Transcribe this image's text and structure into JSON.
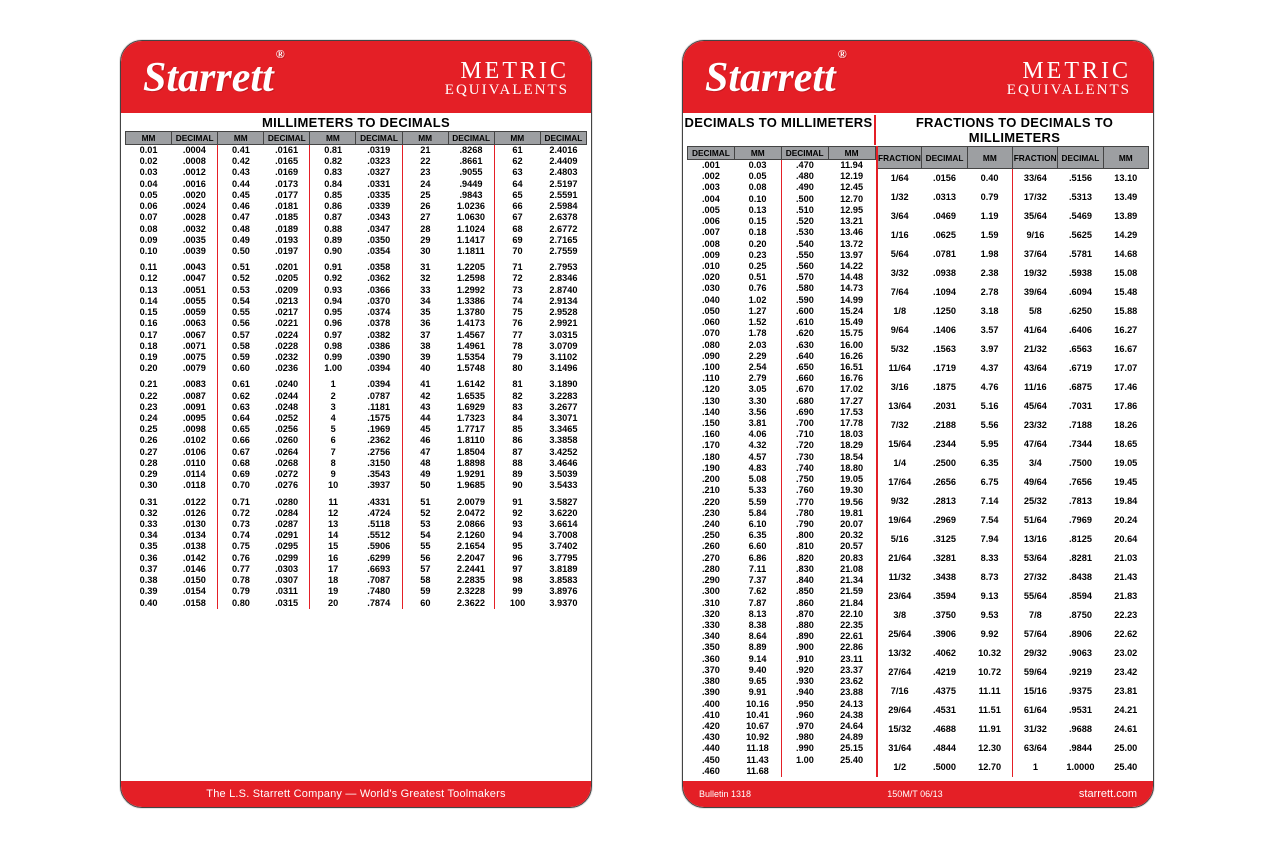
{
  "brand_html": "Starrett<sup>®</sup>",
  "metric_line1": "METRIC",
  "metric_line2": "EQUIVALENTS",
  "colors": {
    "red": "#e41f26",
    "header_gray": "#9d9fa2",
    "text": "#000000",
    "white": "#ffffff"
  },
  "card1": {
    "title": "MILLIMETERS TO DECIMALS",
    "footer": "The L.S. Starrett Company — World's Greatest Toolmakers",
    "headers": [
      "MM",
      "DECIMAL",
      "MM",
      "DECIMAL",
      "MM",
      "DECIMAL",
      "MM",
      "DECIMAL",
      "MM",
      "DECIMAL"
    ],
    "groups": [
      [
        [
          "0.01",
          ".0004",
          "0.41",
          ".0161",
          "0.81",
          ".0319",
          "21",
          ".8268",
          "61",
          "2.4016"
        ],
        [
          "0.02",
          ".0008",
          "0.42",
          ".0165",
          "0.82",
          ".0323",
          "22",
          ".8661",
          "62",
          "2.4409"
        ],
        [
          "0.03",
          ".0012",
          "0.43",
          ".0169",
          "0.83",
          ".0327",
          "23",
          ".9055",
          "63",
          "2.4803"
        ],
        [
          "0.04",
          ".0016",
          "0.44",
          ".0173",
          "0.84",
          ".0331",
          "24",
          ".9449",
          "64",
          "2.5197"
        ],
        [
          "0.05",
          ".0020",
          "0.45",
          ".0177",
          "0.85",
          ".0335",
          "25",
          ".9843",
          "65",
          "2.5591"
        ],
        [
          "0.06",
          ".0024",
          "0.46",
          ".0181",
          "0.86",
          ".0339",
          "26",
          "1.0236",
          "66",
          "2.5984"
        ],
        [
          "0.07",
          ".0028",
          "0.47",
          ".0185",
          "0.87",
          ".0343",
          "27",
          "1.0630",
          "67",
          "2.6378"
        ],
        [
          "0.08",
          ".0032",
          "0.48",
          ".0189",
          "0.88",
          ".0347",
          "28",
          "1.1024",
          "68",
          "2.6772"
        ],
        [
          "0.09",
          ".0035",
          "0.49",
          ".0193",
          "0.89",
          ".0350",
          "29",
          "1.1417",
          "69",
          "2.7165"
        ],
        [
          "0.10",
          ".0039",
          "0.50",
          ".0197",
          "0.90",
          ".0354",
          "30",
          "1.1811",
          "70",
          "2.7559"
        ]
      ],
      [
        [
          "0.11",
          ".0043",
          "0.51",
          ".0201",
          "0.91",
          ".0358",
          "31",
          "1.2205",
          "71",
          "2.7953"
        ],
        [
          "0.12",
          ".0047",
          "0.52",
          ".0205",
          "0.92",
          ".0362",
          "32",
          "1.2598",
          "72",
          "2.8346"
        ],
        [
          "0.13",
          ".0051",
          "0.53",
          ".0209",
          "0.93",
          ".0366",
          "33",
          "1.2992",
          "73",
          "2.8740"
        ],
        [
          "0.14",
          ".0055",
          "0.54",
          ".0213",
          "0.94",
          ".0370",
          "34",
          "1.3386",
          "74",
          "2.9134"
        ],
        [
          "0.15",
          ".0059",
          "0.55",
          ".0217",
          "0.95",
          ".0374",
          "35",
          "1.3780",
          "75",
          "2.9528"
        ],
        [
          "0.16",
          ".0063",
          "0.56",
          ".0221",
          "0.96",
          ".0378",
          "36",
          "1.4173",
          "76",
          "2.9921"
        ],
        [
          "0.17",
          ".0067",
          "0.57",
          ".0224",
          "0.97",
          ".0382",
          "37",
          "1.4567",
          "77",
          "3.0315"
        ],
        [
          "0.18",
          ".0071",
          "0.58",
          ".0228",
          "0.98",
          ".0386",
          "38",
          "1.4961",
          "78",
          "3.0709"
        ],
        [
          "0.19",
          ".0075",
          "0.59",
          ".0232",
          "0.99",
          ".0390",
          "39",
          "1.5354",
          "79",
          "3.1102"
        ],
        [
          "0.20",
          ".0079",
          "0.60",
          ".0236",
          "1.00",
          ".0394",
          "40",
          "1.5748",
          "80",
          "3.1496"
        ]
      ],
      [
        [
          "0.21",
          ".0083",
          "0.61",
          ".0240",
          "1",
          ".0394",
          "41",
          "1.6142",
          "81",
          "3.1890"
        ],
        [
          "0.22",
          ".0087",
          "0.62",
          ".0244",
          "2",
          ".0787",
          "42",
          "1.6535",
          "82",
          "3.2283"
        ],
        [
          "0.23",
          ".0091",
          "0.63",
          ".0248",
          "3",
          ".1181",
          "43",
          "1.6929",
          "83",
          "3.2677"
        ],
        [
          "0.24",
          ".0095",
          "0.64",
          ".0252",
          "4",
          ".1575",
          "44",
          "1.7323",
          "84",
          "3.3071"
        ],
        [
          "0.25",
          ".0098",
          "0.65",
          ".0256",
          "5",
          ".1969",
          "45",
          "1.7717",
          "85",
          "3.3465"
        ],
        [
          "0.26",
          ".0102",
          "0.66",
          ".0260",
          "6",
          ".2362",
          "46",
          "1.8110",
          "86",
          "3.3858"
        ],
        [
          "0.27",
          ".0106",
          "0.67",
          ".0264",
          "7",
          ".2756",
          "47",
          "1.8504",
          "87",
          "3.4252"
        ],
        [
          "0.28",
          ".0110",
          "0.68",
          ".0268",
          "8",
          ".3150",
          "48",
          "1.8898",
          "88",
          "3.4646"
        ],
        [
          "0.29",
          ".0114",
          "0.69",
          ".0272",
          "9",
          ".3543",
          "49",
          "1.9291",
          "89",
          "3.5039"
        ],
        [
          "0.30",
          ".0118",
          "0.70",
          ".0276",
          "10",
          ".3937",
          "50",
          "1.9685",
          "90",
          "3.5433"
        ]
      ],
      [
        [
          "0.31",
          ".0122",
          "0.71",
          ".0280",
          "11",
          ".4331",
          "51",
          "2.0079",
          "91",
          "3.5827"
        ],
        [
          "0.32",
          ".0126",
          "0.72",
          ".0284",
          "12",
          ".4724",
          "52",
          "2.0472",
          "92",
          "3.6220"
        ],
        [
          "0.33",
          ".0130",
          "0.73",
          ".0287",
          "13",
          ".5118",
          "53",
          "2.0866",
          "93",
          "3.6614"
        ],
        [
          "0.34",
          ".0134",
          "0.74",
          ".0291",
          "14",
          ".5512",
          "54",
          "2.1260",
          "94",
          "3.7008"
        ],
        [
          "0.35",
          ".0138",
          "0.75",
          ".0295",
          "15",
          ".5906",
          "55",
          "2.1654",
          "95",
          "3.7402"
        ],
        [
          "0.36",
          ".0142",
          "0.76",
          ".0299",
          "16",
          ".6299",
          "56",
          "2.2047",
          "96",
          "3.7795"
        ],
        [
          "0.37",
          ".0146",
          "0.77",
          ".0303",
          "17",
          ".6693",
          "57",
          "2.2441",
          "97",
          "3.8189"
        ],
        [
          "0.38",
          ".0150",
          "0.78",
          ".0307",
          "18",
          ".7087",
          "58",
          "2.2835",
          "98",
          "3.8583"
        ],
        [
          "0.39",
          ".0154",
          "0.79",
          ".0311",
          "19",
          ".7480",
          "59",
          "2.3228",
          "99",
          "3.8976"
        ],
        [
          "0.40",
          ".0158",
          "0.80",
          ".0315",
          "20",
          ".7874",
          "60",
          "2.3622",
          "100",
          "3.9370"
        ]
      ]
    ]
  },
  "card2": {
    "title_left": "DECIMALS TO MILLIMETERS",
    "title_right": "FRACTIONS TO DECIMALS TO MILLIMETERS",
    "footer_left1": "Bulletin 1318",
    "footer_left2": "150M/T  06/13",
    "footer_right": "starrett.com",
    "headers": [
      "DECIMAL",
      "MM",
      "DECIMAL",
      "MM",
      "FRACTION",
      "DECIMAL",
      "MM",
      "FRACTION",
      "DECIMAL",
      "MM"
    ],
    "left_rows": [
      [
        ".001",
        "0.03",
        ".470",
        "11.94"
      ],
      [
        ".002",
        "0.05",
        ".480",
        "12.19"
      ],
      [
        ".003",
        "0.08",
        ".490",
        "12.45"
      ],
      [
        ".004",
        "0.10",
        ".500",
        "12.70"
      ],
      [
        ".005",
        "0.13",
        ".510",
        "12.95"
      ],
      [
        ".006",
        "0.15",
        ".520",
        "13.21"
      ],
      [
        ".007",
        "0.18",
        ".530",
        "13.46"
      ],
      [
        ".008",
        "0.20",
        ".540",
        "13.72"
      ],
      [
        ".009",
        "0.23",
        ".550",
        "13.97"
      ],
      [
        ".010",
        "0.25",
        ".560",
        "14.22"
      ],
      [
        ".020",
        "0.51",
        ".570",
        "14.48"
      ],
      [
        ".030",
        "0.76",
        ".580",
        "14.73"
      ],
      [
        ".040",
        "1.02",
        ".590",
        "14.99"
      ],
      [
        ".050",
        "1.27",
        ".600",
        "15.24"
      ],
      [
        ".060",
        "1.52",
        ".610",
        "15.49"
      ],
      [
        ".070",
        "1.78",
        ".620",
        "15.75"
      ],
      [
        ".080",
        "2.03",
        ".630",
        "16.00"
      ],
      [
        ".090",
        "2.29",
        ".640",
        "16.26"
      ],
      [
        ".100",
        "2.54",
        ".650",
        "16.51"
      ],
      [
        ".110",
        "2.79",
        ".660",
        "16.76"
      ],
      [
        ".120",
        "3.05",
        ".670",
        "17.02"
      ],
      [
        ".130",
        "3.30",
        ".680",
        "17.27"
      ],
      [
        ".140",
        "3.56",
        ".690",
        "17.53"
      ],
      [
        ".150",
        "3.81",
        ".700",
        "17.78"
      ],
      [
        ".160",
        "4.06",
        ".710",
        "18.03"
      ],
      [
        ".170",
        "4.32",
        ".720",
        "18.29"
      ],
      [
        ".180",
        "4.57",
        ".730",
        "18.54"
      ],
      [
        ".190",
        "4.83",
        ".740",
        "18.80"
      ],
      [
        ".200",
        "5.08",
        ".750",
        "19.05"
      ],
      [
        ".210",
        "5.33",
        ".760",
        "19.30"
      ],
      [
        ".220",
        "5.59",
        ".770",
        "19.56"
      ],
      [
        ".230",
        "5.84",
        ".780",
        "19.81"
      ],
      [
        ".240",
        "6.10",
        ".790",
        "20.07"
      ],
      [
        ".250",
        "6.35",
        ".800",
        "20.32"
      ],
      [
        ".260",
        "6.60",
        ".810",
        "20.57"
      ],
      [
        ".270",
        "6.86",
        ".820",
        "20.83"
      ],
      [
        ".280",
        "7.11",
        ".830",
        "21.08"
      ],
      [
        ".290",
        "7.37",
        ".840",
        "21.34"
      ],
      [
        ".300",
        "7.62",
        ".850",
        "21.59"
      ],
      [
        ".310",
        "7.87",
        ".860",
        "21.84"
      ],
      [
        ".320",
        "8.13",
        ".870",
        "22.10"
      ],
      [
        ".330",
        "8.38",
        ".880",
        "22.35"
      ],
      [
        ".340",
        "8.64",
        ".890",
        "22.61"
      ],
      [
        ".350",
        "8.89",
        ".900",
        "22.86"
      ],
      [
        ".360",
        "9.14",
        ".910",
        "23.11"
      ],
      [
        ".370",
        "9.40",
        ".920",
        "23.37"
      ],
      [
        ".380",
        "9.65",
        ".930",
        "23.62"
      ],
      [
        ".390",
        "9.91",
        ".940",
        "23.88"
      ],
      [
        ".400",
        "10.16",
        ".950",
        "24.13"
      ],
      [
        ".410",
        "10.41",
        ".960",
        "24.38"
      ],
      [
        ".420",
        "10.67",
        ".970",
        "24.64"
      ],
      [
        ".430",
        "10.92",
        ".980",
        "24.89"
      ],
      [
        ".440",
        "11.18",
        ".990",
        "25.15"
      ],
      [
        ".450",
        "11.43",
        "1.00",
        "25.40"
      ],
      [
        ".460",
        "11.68",
        "",
        ""
      ]
    ],
    "right_rows": [
      [
        "1/64",
        ".0156",
        "0.40",
        "33/64",
        ".5156",
        "13.10"
      ],
      [
        "1/32",
        ".0313",
        "0.79",
        "17/32",
        ".5313",
        "13.49"
      ],
      [
        "3/64",
        ".0469",
        "1.19",
        "35/64",
        ".5469",
        "13.89"
      ],
      [
        "",
        "",
        "",
        "",
        "",
        ""
      ],
      [
        "1/16",
        ".0625",
        "1.59",
        "9/16",
        ".5625",
        "14.29"
      ],
      [
        "",
        "",
        "",
        "",
        "",
        ""
      ],
      [
        "5/64",
        ".0781",
        "1.98",
        "37/64",
        ".5781",
        "14.68"
      ],
      [
        "3/32",
        ".0938",
        "2.38",
        "19/32",
        ".5938",
        "15.08"
      ],
      [
        "7/64",
        ".1094",
        "2.78",
        "39/64",
        ".6094",
        "15.48"
      ],
      [
        "",
        "",
        "",
        "",
        "",
        ""
      ],
      [
        "1/8",
        ".1250",
        "3.18",
        "5/8",
        ".6250",
        "15.88"
      ],
      [
        "",
        "",
        "",
        "",
        "",
        ""
      ],
      [
        "9/64",
        ".1406",
        "3.57",
        "41/64",
        ".6406",
        "16.27"
      ],
      [
        "5/32",
        ".1563",
        "3.97",
        "21/32",
        ".6563",
        "16.67"
      ],
      [
        "11/64",
        ".1719",
        "4.37",
        "43/64",
        ".6719",
        "17.07"
      ],
      [
        "",
        "",
        "",
        "",
        "",
        ""
      ],
      [
        "3/16",
        ".1875",
        "4.76",
        "11/16",
        ".6875",
        "17.46"
      ],
      [
        "",
        "",
        "",
        "",
        "",
        ""
      ],
      [
        "13/64",
        ".2031",
        "5.16",
        "45/64",
        ".7031",
        "17.86"
      ],
      [
        "7/32",
        ".2188",
        "5.56",
        "23/32",
        ".7188",
        "18.26"
      ],
      [
        "15/64",
        ".2344",
        "5.95",
        "47/64",
        ".7344",
        "18.65"
      ],
      [
        "",
        "",
        "",
        "",
        "",
        ""
      ],
      [
        "1/4",
        ".2500",
        "6.35",
        "3/4",
        ".7500",
        "19.05"
      ],
      [
        "",
        "",
        "",
        "",
        "",
        ""
      ],
      [
        "17/64",
        ".2656",
        "6.75",
        "49/64",
        ".7656",
        "19.45"
      ],
      [
        "9/32",
        ".2813",
        "7.14",
        "25/32",
        ".7813",
        "19.84"
      ],
      [
        "19/64",
        ".2969",
        "7.54",
        "51/64",
        ".7969",
        "20.24"
      ],
      [
        "",
        "",
        "",
        "",
        "",
        ""
      ],
      [
        "5/16",
        ".3125",
        "7.94",
        "13/16",
        ".8125",
        "20.64"
      ],
      [
        "",
        "",
        "",
        "",
        "",
        ""
      ],
      [
        "21/64",
        ".3281",
        "8.33",
        "53/64",
        ".8281",
        "21.03"
      ],
      [
        "11/32",
        ".3438",
        "8.73",
        "27/32",
        ".8438",
        "21.43"
      ],
      [
        "23/64",
        ".3594",
        "9.13",
        "55/64",
        ".8594",
        "21.83"
      ],
      [
        "",
        "",
        "",
        "",
        "",
        ""
      ],
      [
        "3/8",
        ".3750",
        "9.53",
        "7/8",
        ".8750",
        "22.23"
      ],
      [
        "",
        "",
        "",
        "",
        "",
        ""
      ],
      [
        "25/64",
        ".3906",
        "9.92",
        "57/64",
        ".8906",
        "22.62"
      ],
      [
        "13/32",
        ".4062",
        "10.32",
        "29/32",
        ".9063",
        "23.02"
      ],
      [
        "27/64",
        ".4219",
        "10.72",
        "59/64",
        ".9219",
        "23.42"
      ],
      [
        "",
        "",
        "",
        "",
        "",
        ""
      ],
      [
        "7/16",
        ".4375",
        "11.11",
        "15/16",
        ".9375",
        "23.81"
      ],
      [
        "",
        "",
        "",
        "",
        "",
        ""
      ],
      [
        "29/64",
        ".4531",
        "11.51",
        "61/64",
        ".9531",
        "24.21"
      ],
      [
        "15/32",
        ".4688",
        "11.91",
        "31/32",
        ".9688",
        "24.61"
      ],
      [
        "31/64",
        ".4844",
        "12.30",
        "63/64",
        ".9844",
        "25.00"
      ],
      [
        "",
        "",
        "",
        "",
        "",
        ""
      ],
      [
        "1/2",
        ".5000",
        "12.70",
        "1",
        "1.0000",
        "25.40"
      ]
    ]
  }
}
